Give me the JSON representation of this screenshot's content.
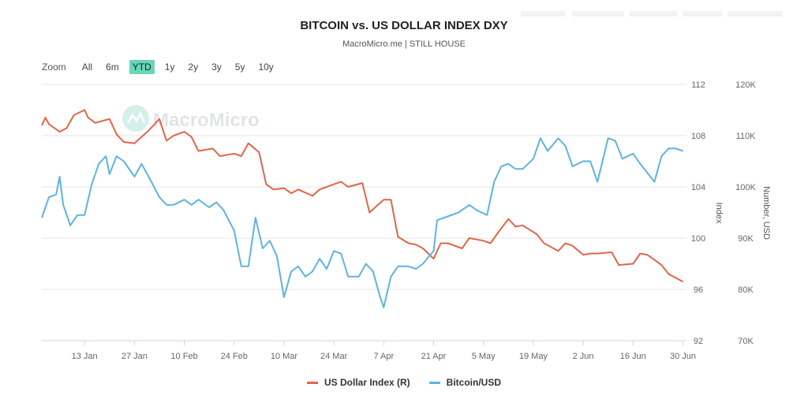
{
  "title": "BITCOIN vs. US DOLLAR INDEX DXY",
  "subtitle": "MacroMicro.me | STILL HOUSE",
  "watermark": "MacroMicro",
  "zoom": {
    "label": "Zoom",
    "options": [
      "All",
      "6m",
      "YTD",
      "1y",
      "2y",
      "3y",
      "5y",
      "10y"
    ],
    "active": "YTD"
  },
  "legend": [
    {
      "label": "US Dollar Index (R)",
      "color": "#e0664a"
    },
    {
      "label": "Bitcoin/USD",
      "color": "#5fb3e0"
    }
  ],
  "chart_data": {
    "type": "line",
    "x_ticks": [
      "13 Jan",
      "27 Jan",
      "10 Feb",
      "24 Feb",
      "10 Mar",
      "24 Mar",
      "7 Apr",
      "21 Apr",
      "5 May",
      "19 May",
      "2 Jun",
      "16 Jun",
      "30 Jun"
    ],
    "x_range": [
      "2025-01-01",
      "2025-07-01"
    ],
    "left_axis": {
      "label": "Index",
      "ticks": [
        "112",
        "108",
        "104",
        "100",
        "96",
        "92"
      ],
      "range": [
        92,
        112
      ]
    },
    "right_axis": {
      "label": "Number, USD",
      "ticks": [
        "120K",
        "110K",
        "100K",
        "90K",
        "80K",
        "70K"
      ],
      "range": [
        70000,
        120000
      ]
    },
    "grid": true,
    "series": [
      {
        "name": "US Dollar Index (R)",
        "color": "#e0664a",
        "axis": "left",
        "points": [
          [
            "2025-01-01",
            108.8
          ],
          [
            "2025-01-02",
            109.4
          ],
          [
            "2025-01-03",
            108.9
          ],
          [
            "2025-01-06",
            108.3
          ],
          [
            "2025-01-08",
            108.6
          ],
          [
            "2025-01-10",
            109.6
          ],
          [
            "2025-01-13",
            110.0
          ],
          [
            "2025-01-14",
            109.4
          ],
          [
            "2025-01-16",
            109.0
          ],
          [
            "2025-01-20",
            109.3
          ],
          [
            "2025-01-22",
            108.1
          ],
          [
            "2025-01-24",
            107.5
          ],
          [
            "2025-01-27",
            107.4
          ],
          [
            "2025-01-29",
            107.9
          ],
          [
            "2025-01-31",
            108.4
          ],
          [
            "2025-02-03",
            109.3
          ],
          [
            "2025-02-05",
            107.6
          ],
          [
            "2025-02-07",
            108.0
          ],
          [
            "2025-02-10",
            108.3
          ],
          [
            "2025-02-12",
            107.9
          ],
          [
            "2025-02-14",
            106.8
          ],
          [
            "2025-02-18",
            107.0
          ],
          [
            "2025-02-20",
            106.4
          ],
          [
            "2025-02-24",
            106.6
          ],
          [
            "2025-02-26",
            106.4
          ],
          [
            "2025-02-28",
            107.4
          ],
          [
            "2025-03-03",
            106.7
          ],
          [
            "2025-03-05",
            104.2
          ],
          [
            "2025-03-07",
            103.8
          ],
          [
            "2025-03-10",
            103.9
          ],
          [
            "2025-03-12",
            103.5
          ],
          [
            "2025-03-14",
            103.8
          ],
          [
            "2025-03-18",
            103.3
          ],
          [
            "2025-03-20",
            103.8
          ],
          [
            "2025-03-24",
            104.2
          ],
          [
            "2025-03-26",
            104.4
          ],
          [
            "2025-03-28",
            104.0
          ],
          [
            "2025-04-01",
            104.3
          ],
          [
            "2025-04-03",
            102.0
          ],
          [
            "2025-04-07",
            103.0
          ],
          [
            "2025-04-09",
            103.0
          ],
          [
            "2025-04-11",
            100.1
          ],
          [
            "2025-04-14",
            99.6
          ],
          [
            "2025-04-16",
            99.5
          ],
          [
            "2025-04-18",
            99.2
          ],
          [
            "2025-04-21",
            98.4
          ],
          [
            "2025-04-23",
            99.6
          ],
          [
            "2025-04-25",
            99.6
          ],
          [
            "2025-04-29",
            99.2
          ],
          [
            "2025-05-01",
            100.0
          ],
          [
            "2025-05-05",
            99.8
          ],
          [
            "2025-05-07",
            99.6
          ],
          [
            "2025-05-09",
            100.4
          ],
          [
            "2025-05-12",
            101.5
          ],
          [
            "2025-05-14",
            100.9
          ],
          [
            "2025-05-16",
            101.0
          ],
          [
            "2025-05-20",
            100.3
          ],
          [
            "2025-05-22",
            99.6
          ],
          [
            "2025-05-26",
            99.0
          ],
          [
            "2025-05-28",
            99.6
          ],
          [
            "2025-05-30",
            99.4
          ],
          [
            "2025-06-02",
            98.7
          ],
          [
            "2025-06-04",
            98.8
          ],
          [
            "2025-06-06",
            98.8
          ],
          [
            "2025-06-10",
            98.9
          ],
          [
            "2025-06-12",
            97.9
          ],
          [
            "2025-06-16",
            98.0
          ],
          [
            "2025-06-18",
            98.8
          ],
          [
            "2025-06-20",
            98.7
          ],
          [
            "2025-06-24",
            97.9
          ],
          [
            "2025-06-26",
            97.2
          ],
          [
            "2025-06-30",
            96.6
          ]
        ]
      },
      {
        "name": "Bitcoin/USD",
        "color": "#5fb3e0",
        "axis": "right",
        "points": [
          [
            "2025-01-01",
            94000
          ],
          [
            "2025-01-03",
            98000
          ],
          [
            "2025-01-05",
            98500
          ],
          [
            "2025-01-06",
            102000
          ],
          [
            "2025-01-07",
            96500
          ],
          [
            "2025-01-09",
            92500
          ],
          [
            "2025-01-11",
            94500
          ],
          [
            "2025-01-13",
            94500
          ],
          [
            "2025-01-15",
            100500
          ],
          [
            "2025-01-17",
            104500
          ],
          [
            "2025-01-19",
            106000
          ],
          [
            "2025-01-20",
            102500
          ],
          [
            "2025-01-22",
            106000
          ],
          [
            "2025-01-24",
            105000
          ],
          [
            "2025-01-27",
            102000
          ],
          [
            "2025-01-29",
            104500
          ],
          [
            "2025-01-31",
            102000
          ],
          [
            "2025-02-03",
            98000
          ],
          [
            "2025-02-05",
            96500
          ],
          [
            "2025-02-07",
            96500
          ],
          [
            "2025-02-10",
            97500
          ],
          [
            "2025-02-12",
            96500
          ],
          [
            "2025-02-14",
            97500
          ],
          [
            "2025-02-17",
            96000
          ],
          [
            "2025-02-19",
            97000
          ],
          [
            "2025-02-21",
            95500
          ],
          [
            "2025-02-24",
            91500
          ],
          [
            "2025-02-26",
            84500
          ],
          [
            "2025-02-28",
            84500
          ],
          [
            "2025-03-02",
            94000
          ],
          [
            "2025-03-04",
            88000
          ],
          [
            "2025-03-06",
            89500
          ],
          [
            "2025-03-08",
            86500
          ],
          [
            "2025-03-10",
            78500
          ],
          [
            "2025-03-12",
            83500
          ],
          [
            "2025-03-14",
            84500
          ],
          [
            "2025-03-16",
            82500
          ],
          [
            "2025-03-18",
            83500
          ],
          [
            "2025-03-20",
            86000
          ],
          [
            "2025-03-22",
            84000
          ],
          [
            "2025-03-24",
            87500
          ],
          [
            "2025-03-26",
            87000
          ],
          [
            "2025-03-28",
            82500
          ],
          [
            "2025-03-31",
            82500
          ],
          [
            "2025-04-02",
            85000
          ],
          [
            "2025-04-04",
            83500
          ],
          [
            "2025-04-06",
            78500
          ],
          [
            "2025-04-07",
            76500
          ],
          [
            "2025-04-09",
            82500
          ],
          [
            "2025-04-11",
            84500
          ],
          [
            "2025-04-14",
            84500
          ],
          [
            "2025-04-16",
            84000
          ],
          [
            "2025-04-18",
            85000
          ],
          [
            "2025-04-21",
            87500
          ],
          [
            "2025-04-22",
            93500
          ],
          [
            "2025-04-24",
            94000
          ],
          [
            "2025-04-28",
            95000
          ],
          [
            "2025-05-01",
            96500
          ],
          [
            "2025-05-03",
            95500
          ],
          [
            "2025-05-06",
            94500
          ],
          [
            "2025-05-08",
            101000
          ],
          [
            "2025-05-10",
            104000
          ],
          [
            "2025-05-12",
            104500
          ],
          [
            "2025-05-14",
            103500
          ],
          [
            "2025-05-16",
            103500
          ],
          [
            "2025-05-19",
            105500
          ],
          [
            "2025-05-21",
            109500
          ],
          [
            "2025-05-23",
            107000
          ],
          [
            "2025-05-26",
            109500
          ],
          [
            "2025-05-28",
            108000
          ],
          [
            "2025-05-30",
            104000
          ],
          [
            "2025-06-02",
            105000
          ],
          [
            "2025-06-04",
            105000
          ],
          [
            "2025-06-06",
            101000
          ],
          [
            "2025-06-09",
            109500
          ],
          [
            "2025-06-11",
            109000
          ],
          [
            "2025-06-13",
            105500
          ],
          [
            "2025-06-16",
            106500
          ],
          [
            "2025-06-18",
            104500
          ],
          [
            "2025-06-22",
            101000
          ],
          [
            "2025-06-24",
            106000
          ],
          [
            "2025-06-26",
            107500
          ],
          [
            "2025-06-28",
            107500
          ],
          [
            "2025-06-30",
            107000
          ]
        ]
      }
    ]
  }
}
